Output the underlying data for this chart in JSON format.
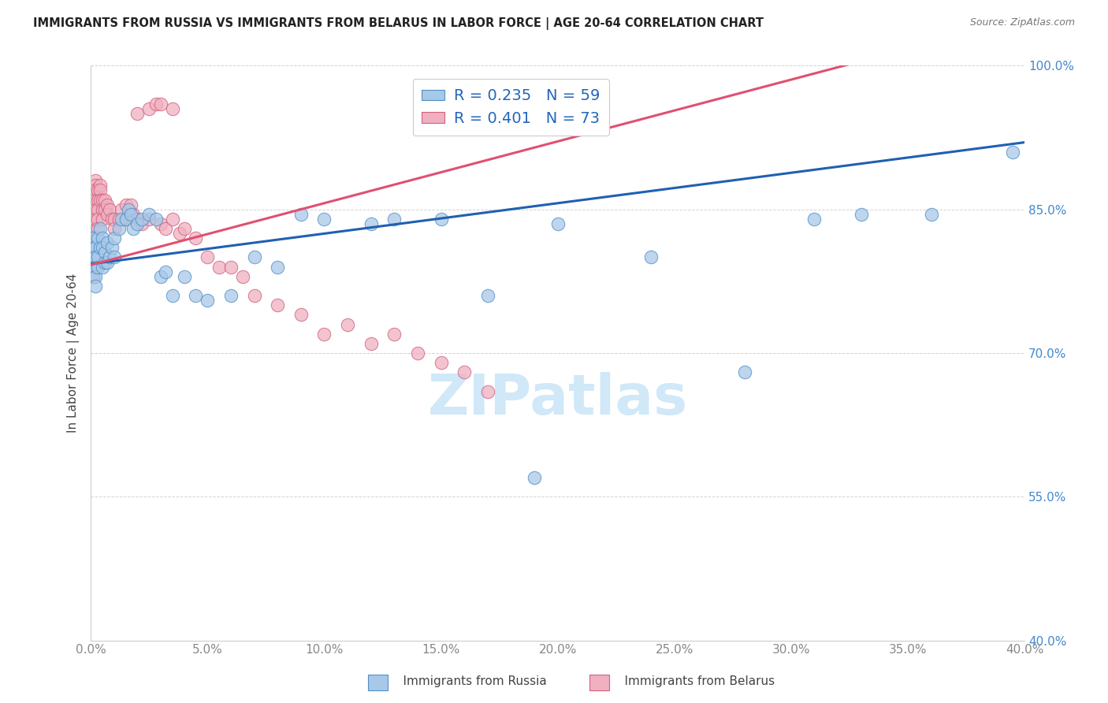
{
  "title": "IMMIGRANTS FROM RUSSIA VS IMMIGRANTS FROM BELARUS IN LABOR FORCE | AGE 20-64 CORRELATION CHART",
  "source": "Source: ZipAtlas.com",
  "ylabel": "In Labor Force | Age 20-64",
  "legend_russia": "Immigrants from Russia",
  "legend_belarus": "Immigrants from Belarus",
  "R_russia": 0.235,
  "N_russia": 59,
  "R_belarus": 0.401,
  "N_belarus": 73,
  "xmin": 0.0,
  "xmax": 0.4,
  "ymin": 0.4,
  "ymax": 1.0,
  "color_russia_fill": "#a8c8e8",
  "color_russia_edge": "#5090c8",
  "color_belarus_fill": "#f0b0c0",
  "color_belarus_edge": "#d06080",
  "color_russia_line": "#2060b0",
  "color_belarus_line": "#e05070",
  "watermark_color": "#d0e8f8",
  "russia_x": [
    0.001,
    0.001,
    0.001,
    0.001,
    0.001,
    0.002,
    0.002,
    0.002,
    0.002,
    0.002,
    0.003,
    0.003,
    0.003,
    0.004,
    0.004,
    0.005,
    0.005,
    0.005,
    0.006,
    0.006,
    0.007,
    0.007,
    0.008,
    0.009,
    0.01,
    0.01,
    0.012,
    0.013,
    0.015,
    0.016,
    0.017,
    0.018,
    0.02,
    0.022,
    0.025,
    0.028,
    0.03,
    0.032,
    0.035,
    0.04,
    0.045,
    0.05,
    0.06,
    0.07,
    0.08,
    0.09,
    0.1,
    0.12,
    0.13,
    0.15,
    0.17,
    0.19,
    0.2,
    0.24,
    0.28,
    0.31,
    0.33,
    0.36,
    0.395
  ],
  "russia_y": [
    0.82,
    0.81,
    0.8,
    0.79,
    0.78,
    0.81,
    0.8,
    0.79,
    0.78,
    0.77,
    0.82,
    0.8,
    0.79,
    0.83,
    0.81,
    0.82,
    0.81,
    0.79,
    0.805,
    0.795,
    0.815,
    0.795,
    0.8,
    0.81,
    0.82,
    0.8,
    0.83,
    0.84,
    0.84,
    0.85,
    0.845,
    0.83,
    0.835,
    0.84,
    0.845,
    0.84,
    0.78,
    0.785,
    0.76,
    0.78,
    0.76,
    0.755,
    0.76,
    0.8,
    0.79,
    0.845,
    0.84,
    0.835,
    0.84,
    0.84,
    0.76,
    0.57,
    0.835,
    0.8,
    0.68,
    0.84,
    0.845,
    0.845,
    0.91
  ],
  "belarus_x": [
    0.001,
    0.001,
    0.001,
    0.001,
    0.001,
    0.001,
    0.001,
    0.001,
    0.001,
    0.001,
    0.001,
    0.002,
    0.002,
    0.002,
    0.002,
    0.002,
    0.002,
    0.002,
    0.002,
    0.003,
    0.003,
    0.003,
    0.003,
    0.003,
    0.004,
    0.004,
    0.004,
    0.005,
    0.005,
    0.005,
    0.006,
    0.006,
    0.007,
    0.007,
    0.008,
    0.009,
    0.01,
    0.01,
    0.012,
    0.013,
    0.015,
    0.015,
    0.017,
    0.018,
    0.02,
    0.022,
    0.025,
    0.03,
    0.032,
    0.035,
    0.038,
    0.04,
    0.045,
    0.05,
    0.055,
    0.06,
    0.065,
    0.07,
    0.08,
    0.09,
    0.1,
    0.11,
    0.12,
    0.13,
    0.14,
    0.15,
    0.16,
    0.17,
    0.02,
    0.025,
    0.028,
    0.03,
    0.035
  ],
  "belarus_y": [
    0.82,
    0.83,
    0.84,
    0.85,
    0.86,
    0.87,
    0.82,
    0.81,
    0.8,
    0.79,
    0.78,
    0.88,
    0.875,
    0.87,
    0.865,
    0.86,
    0.855,
    0.85,
    0.84,
    0.87,
    0.86,
    0.85,
    0.84,
    0.83,
    0.875,
    0.87,
    0.86,
    0.86,
    0.85,
    0.84,
    0.86,
    0.85,
    0.855,
    0.845,
    0.85,
    0.84,
    0.84,
    0.83,
    0.84,
    0.85,
    0.855,
    0.84,
    0.855,
    0.845,
    0.84,
    0.835,
    0.84,
    0.835,
    0.83,
    0.84,
    0.825,
    0.83,
    0.82,
    0.8,
    0.79,
    0.79,
    0.78,
    0.76,
    0.75,
    0.74,
    0.72,
    0.73,
    0.71,
    0.72,
    0.7,
    0.69,
    0.68,
    0.66,
    0.95,
    0.955,
    0.96,
    0.96,
    0.955
  ]
}
